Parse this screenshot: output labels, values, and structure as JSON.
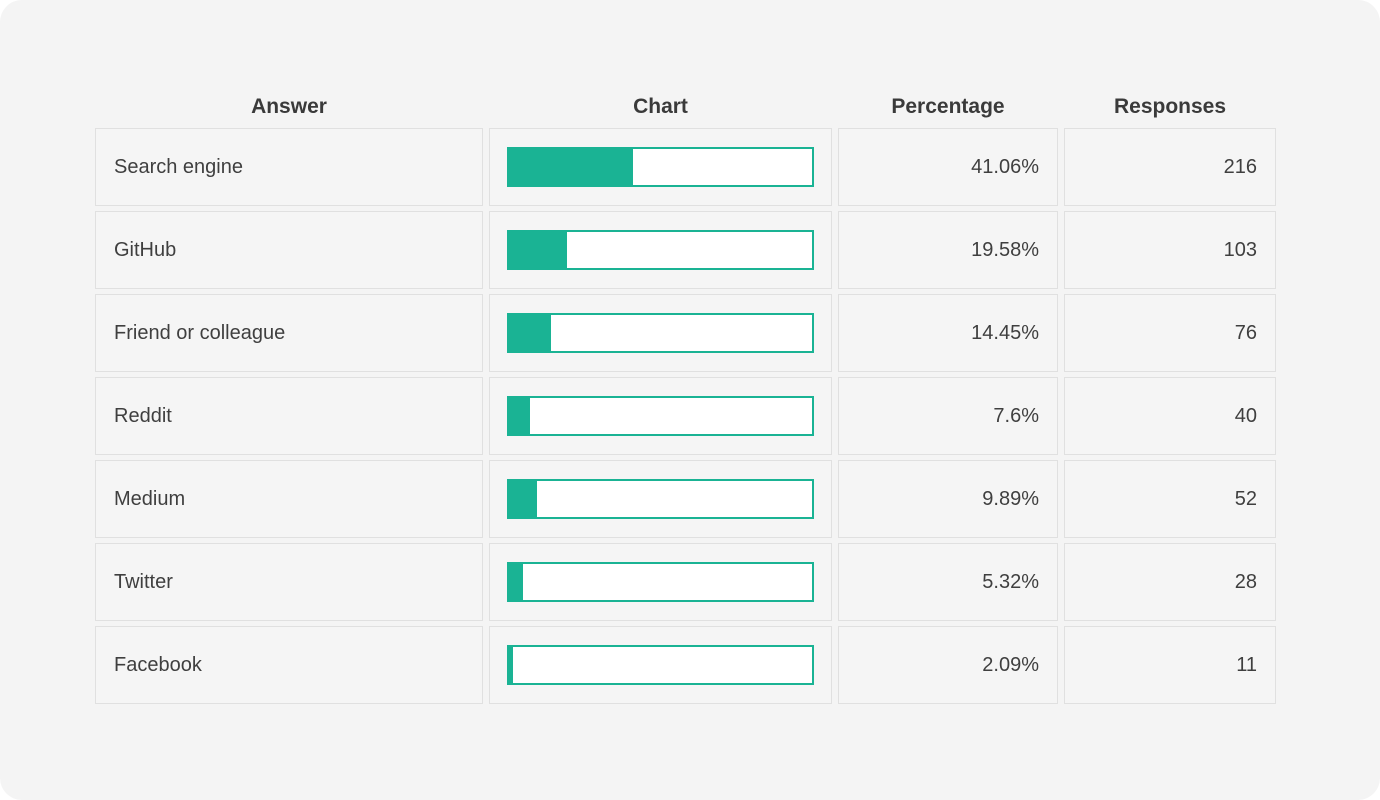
{
  "page": {
    "background_color": "#f4f4f4",
    "outer_background": "#ffffff"
  },
  "colors": {
    "accent_teal": "#1ab394",
    "cell_border": "#e0e0e0",
    "cell_background": "#f5f5f5",
    "bar_background": "#ffffff",
    "text": "#3f3f3f",
    "header_text": "#3a3a3a"
  },
  "table": {
    "headers": {
      "answer": "Answer",
      "chart": "Chart",
      "percentage": "Percentage",
      "responses": "Responses"
    },
    "rows": [
      {
        "answer": "Search engine",
        "percent": 41.06,
        "percentage_label": "41.06%",
        "responses": "216"
      },
      {
        "answer": "GitHub",
        "percent": 19.58,
        "percentage_label": "19.58%",
        "responses": "103"
      },
      {
        "answer": "Friend or colleague",
        "percent": 14.45,
        "percentage_label": "14.45%",
        "responses": "76"
      },
      {
        "answer": "Reddit",
        "percent": 7.6,
        "percentage_label": "7.6%",
        "responses": "40"
      },
      {
        "answer": "Medium",
        "percent": 9.89,
        "percentage_label": "9.89%",
        "responses": "52"
      },
      {
        "answer": "Twitter",
        "percent": 5.32,
        "percentage_label": "5.32%",
        "responses": "28"
      },
      {
        "answer": "Facebook",
        "percent": 2.09,
        "percentage_label": "2.09%",
        "responses": "11"
      }
    ]
  },
  "chart_data": {
    "type": "bar",
    "orientation": "horizontal",
    "categories": [
      "Search engine",
      "GitHub",
      "Friend or colleague",
      "Reddit",
      "Medium",
      "Twitter",
      "Facebook"
    ],
    "series": [
      {
        "name": "Percentage",
        "values": [
          41.06,
          19.58,
          14.45,
          7.6,
          9.89,
          5.32,
          2.09
        ]
      },
      {
        "name": "Responses",
        "values": [
          216,
          103,
          76,
          40,
          52,
          28,
          11
        ]
      }
    ],
    "title": "",
    "xlabel": "",
    "ylabel": "",
    "xlim": [
      0,
      100
    ],
    "grid": false,
    "legend": false,
    "bar_color": "#1ab394"
  }
}
